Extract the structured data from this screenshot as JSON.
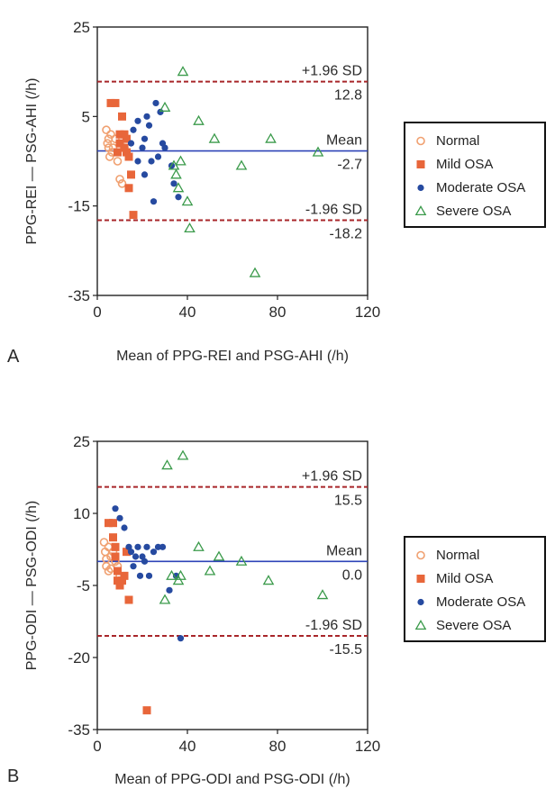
{
  "chart_data": [
    {
      "type": "scatter",
      "panel_label": "A",
      "xlabel": "Mean of PPG-REI and PSG-AHI (/h)",
      "ylabel": "PPG-REI — PSG-AHI (/h)",
      "xlim": [
        0,
        120
      ],
      "ylim": [
        -35,
        25
      ],
      "xticks": [
        0,
        40,
        80,
        120
      ],
      "yticks": [
        25,
        5,
        -15,
        -35
      ],
      "legend_position": "right",
      "lines": [
        {
          "label": "+1.96 SD",
          "value_label": "12.8",
          "y": 12.8,
          "style": "dashed",
          "color": "#a8262a"
        },
        {
          "label": "Mean",
          "value_label": "-2.7",
          "y": -2.7,
          "style": "solid",
          "color": "#2e44b8"
        },
        {
          "label": "-1.96 SD",
          "value_label": "-18.2",
          "y": -18.2,
          "style": "dashed",
          "color": "#a8262a"
        }
      ],
      "series": [
        {
          "name": "Normal",
          "marker": "circle-open",
          "color": "#f0a070",
          "points": [
            [
              4,
              2
            ],
            [
              4.5,
              -1
            ],
            [
              5,
              0
            ],
            [
              5,
              -2
            ],
            [
              5.5,
              -4
            ],
            [
              6,
              1
            ],
            [
              6.5,
              -3
            ],
            [
              7,
              -2
            ],
            [
              8,
              0
            ],
            [
              9,
              -5
            ],
            [
              10,
              -9
            ],
            [
              11,
              -10
            ],
            [
              12,
              -2
            ]
          ]
        },
        {
          "name": "Mild OSA",
          "marker": "square",
          "color": "#e8663a",
          "points": [
            [
              6,
              8
            ],
            [
              8,
              8
            ],
            [
              9,
              -3
            ],
            [
              10,
              1
            ],
            [
              10,
              -1
            ],
            [
              11,
              5
            ],
            [
              12,
              1
            ],
            [
              12,
              -2
            ],
            [
              13,
              0
            ],
            [
              13,
              -3
            ],
            [
              14,
              -4
            ],
            [
              14,
              -11
            ],
            [
              15,
              -8
            ],
            [
              16,
              -17
            ]
          ]
        },
        {
          "name": "Moderate OSA",
          "marker": "circle",
          "color": "#264aa0",
          "points": [
            [
              15,
              -1
            ],
            [
              16,
              2
            ],
            [
              18,
              4
            ],
            [
              18,
              -5
            ],
            [
              20,
              -2
            ],
            [
              21,
              0
            ],
            [
              21,
              -8
            ],
            [
              22,
              5
            ],
            [
              23,
              3
            ],
            [
              24,
              -5
            ],
            [
              25,
              -14
            ],
            [
              26,
              8
            ],
            [
              27,
              -4
            ],
            [
              28,
              6
            ],
            [
              29,
              -1
            ],
            [
              30,
              -2
            ],
            [
              33,
              -6
            ],
            [
              34,
              -10
            ],
            [
              36,
              -13
            ]
          ]
        },
        {
          "name": "Severe OSA",
          "marker": "triangle-open",
          "color": "#3a9a4a",
          "points": [
            [
              30,
              7
            ],
            [
              34,
              -6
            ],
            [
              35,
              -8
            ],
            [
              36,
              -11
            ],
            [
              37,
              -5
            ],
            [
              38,
              15
            ],
            [
              40,
              -14
            ],
            [
              41,
              -20
            ],
            [
              45,
              4
            ],
            [
              52,
              0
            ],
            [
              64,
              -6
            ],
            [
              70,
              -30
            ],
            [
              77,
              0
            ],
            [
              98,
              -3
            ]
          ]
        }
      ]
    },
    {
      "type": "scatter",
      "panel_label": "B",
      "xlabel": "Mean of PPG-ODI and PSG-ODI (/h)",
      "ylabel": "PPG-ODI — PSG-ODI (/h)",
      "xlim": [
        0,
        120
      ],
      "ylim": [
        -35,
        25
      ],
      "xticks": [
        0,
        40,
        80,
        120
      ],
      "yticks": [
        25,
        10,
        -5,
        -20,
        -35
      ],
      "legend_position": "right",
      "lines": [
        {
          "label": "+1.96 SD",
          "value_label": "15.5",
          "y": 15.5,
          "style": "dashed",
          "color": "#a8262a"
        },
        {
          "label": "Mean",
          "value_label": "0.0",
          "y": 0.0,
          "style": "solid",
          "color": "#2e44b8"
        },
        {
          "label": "-1.96 SD",
          "value_label": "-15.5",
          "y": -15.5,
          "style": "dashed",
          "color": "#a8262a"
        }
      ],
      "series": [
        {
          "name": "Normal",
          "marker": "circle-open",
          "color": "#f0a070",
          "points": [
            [
              3,
              4
            ],
            [
              3.5,
              2
            ],
            [
              4,
              -1
            ],
            [
              4,
              0.5
            ],
            [
              5,
              3
            ],
            [
              5,
              -2
            ],
            [
              6,
              1
            ],
            [
              6,
              -1.5
            ],
            [
              7,
              2
            ],
            [
              8,
              0
            ],
            [
              9,
              -1
            ],
            [
              10,
              -3
            ]
          ]
        },
        {
          "name": "Mild OSA",
          "marker": "square",
          "color": "#e8663a",
          "points": [
            [
              5,
              8
            ],
            [
              7,
              8
            ],
            [
              7,
              5
            ],
            [
              8,
              3
            ],
            [
              8,
              1
            ],
            [
              9,
              -2
            ],
            [
              9,
              -4
            ],
            [
              10,
              -5
            ],
            [
              11,
              -4
            ],
            [
              12,
              -3
            ],
            [
              13,
              2
            ],
            [
              14,
              -8
            ],
            [
              22,
              -31
            ]
          ]
        },
        {
          "name": "Moderate OSA",
          "marker": "circle",
          "color": "#264aa0",
          "points": [
            [
              8,
              11
            ],
            [
              10,
              9
            ],
            [
              12,
              7
            ],
            [
              14,
              3
            ],
            [
              15,
              2
            ],
            [
              16,
              -1
            ],
            [
              17,
              1
            ],
            [
              18,
              3
            ],
            [
              19,
              -3
            ],
            [
              20,
              1
            ],
            [
              21,
              0
            ],
            [
              22,
              3
            ],
            [
              23,
              -3
            ],
            [
              25,
              2
            ],
            [
              27,
              3
            ],
            [
              29,
              3
            ],
            [
              32,
              -6
            ],
            [
              35,
              -3
            ],
            [
              37,
              -16
            ]
          ]
        },
        {
          "name": "Severe OSA",
          "marker": "triangle-open",
          "color": "#3a9a4a",
          "points": [
            [
              30,
              -8
            ],
            [
              31,
              20
            ],
            [
              33,
              -3
            ],
            [
              36,
              -4
            ],
            [
              37,
              -3
            ],
            [
              38,
              22
            ],
            [
              45,
              3
            ],
            [
              50,
              -2
            ],
            [
              54,
              1
            ],
            [
              64,
              0
            ],
            [
              76,
              -4
            ],
            [
              100,
              -7
            ]
          ]
        }
      ]
    }
  ]
}
